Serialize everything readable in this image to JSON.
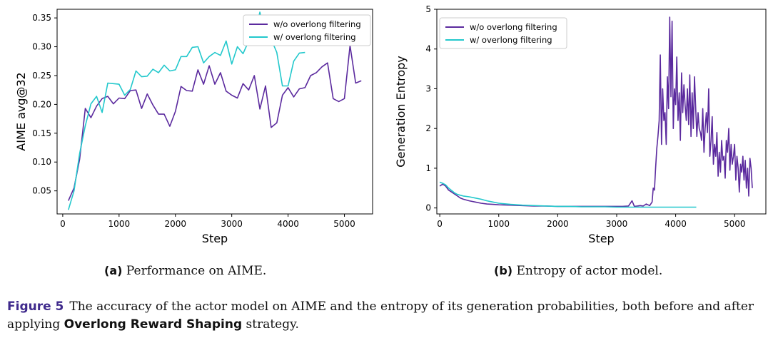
{
  "colors": {
    "without": "#5b2a9e",
    "with": "#22c8cc"
  },
  "chart_data": [
    {
      "type": "line",
      "title": "",
      "xlabel": "Step",
      "ylabel": "AIME avg@32",
      "xlim": [
        -100,
        5500
      ],
      "ylim": [
        0.01,
        0.365
      ],
      "xticks": [
        0,
        1000,
        2000,
        3000,
        4000,
        5000
      ],
      "yticks": [
        0.05,
        0.1,
        0.15,
        0.2,
        0.25,
        0.3,
        0.35
      ],
      "ytick_labels": [
        "0.05",
        "0.10",
        "0.15",
        "0.20",
        "0.25",
        "0.30",
        "0.35"
      ],
      "legend_position": "top-right",
      "series": [
        {
          "name": "w/o overlong filtering",
          "color_key": "without",
          "x": [
            100,
            200,
            300,
            400,
            500,
            600,
            700,
            800,
            900,
            1000,
            1100,
            1200,
            1300,
            1400,
            1500,
            1600,
            1700,
            1800,
            1900,
            2000,
            2100,
            2200,
            2300,
            2400,
            2500,
            2600,
            2700,
            2800,
            2900,
            3000,
            3100,
            3200,
            3300,
            3400,
            3500,
            3600,
            3700,
            3800,
            3900,
            4000,
            4100,
            4200,
            4300,
            4400,
            4500,
            4600,
            4700,
            4800,
            4900,
            5000,
            5100,
            5200,
            5300
          ],
          "y": [
            0.033,
            0.055,
            0.105,
            0.193,
            0.177,
            0.197,
            0.21,
            0.214,
            0.201,
            0.211,
            0.21,
            0.224,
            0.225,
            0.193,
            0.218,
            0.199,
            0.183,
            0.183,
            0.162,
            0.188,
            0.231,
            0.224,
            0.223,
            0.26,
            0.235,
            0.267,
            0.235,
            0.255,
            0.223,
            0.216,
            0.211,
            0.236,
            0.225,
            0.25,
            0.192,
            0.232,
            0.16,
            0.168,
            0.216,
            0.229,
            0.213,
            0.227,
            0.229,
            0.25,
            0.255,
            0.265,
            0.272,
            0.21,
            0.205,
            0.21,
            0.302,
            0.237,
            0.241
          ]
        },
        {
          "name": "w/ overlong filtering",
          "color_key": "with",
          "x": [
            100,
            200,
            300,
            400,
            500,
            600,
            700,
            800,
            900,
            1000,
            1100,
            1200,
            1300,
            1400,
            1500,
            1600,
            1700,
            1800,
            1900,
            2000,
            2100,
            2200,
            2300,
            2400,
            2500,
            2600,
            2700,
            2800,
            2900,
            3000,
            3100,
            3200,
            3300,
            3400,
            3500,
            3600,
            3700,
            3800,
            3900,
            4000,
            4100,
            4200,
            4300
          ],
          "y": [
            0.017,
            0.05,
            0.115,
            0.163,
            0.201,
            0.214,
            0.186,
            0.237,
            0.236,
            0.235,
            0.216,
            0.226,
            0.258,
            0.248,
            0.249,
            0.261,
            0.255,
            0.268,
            0.258,
            0.26,
            0.283,
            0.283,
            0.299,
            0.3,
            0.272,
            0.283,
            0.29,
            0.285,
            0.31,
            0.27,
            0.3,
            0.288,
            0.31,
            0.32,
            0.36,
            0.315,
            0.313,
            0.29,
            0.232,
            0.232,
            0.275,
            0.289,
            0.29
          ]
        }
      ]
    },
    {
      "type": "line",
      "title": "",
      "xlabel": "Step",
      "ylabel": "Generation Entropy",
      "xlim": [
        -50,
        5530
      ],
      "ylim": [
        -0.15,
        5.0
      ],
      "xticks": [
        0,
        1000,
        2000,
        3000,
        4000,
        5000
      ],
      "yticks": [
        0,
        1,
        2,
        3,
        4,
        5
      ],
      "ytick_labels": [
        "0",
        "1",
        "2",
        "3",
        "4",
        "5"
      ],
      "legend_position": "top-left",
      "series": [
        {
          "name": "w/o overlong filtering",
          "color_key": "without",
          "x": [
            0,
            50,
            100,
            150,
            200,
            250,
            300,
            350,
            400,
            450,
            500,
            600,
            700,
            800,
            900,
            1000,
            1200,
            1400,
            1600,
            1800,
            2000,
            2200,
            2400,
            2600,
            2800,
            3000,
            3100,
            3200,
            3260,
            3300,
            3350,
            3400,
            3450,
            3500,
            3530,
            3560,
            3600,
            3620,
            3640,
            3660,
            3680,
            3700,
            3720,
            3740,
            3760,
            3780,
            3800,
            3820,
            3840,
            3860,
            3880,
            3900,
            3920,
            3940,
            3960,
            3980,
            4000,
            4020,
            4040,
            4060,
            4080,
            4100,
            4120,
            4140,
            4160,
            4180,
            4200,
            4220,
            4240,
            4260,
            4280,
            4300,
            4320,
            4340,
            4360,
            4380,
            4400,
            4420,
            4440,
            4460,
            4480,
            4500,
            4520,
            4540,
            4560,
            4580,
            4600,
            4620,
            4640,
            4660,
            4680,
            4700,
            4720,
            4740,
            4760,
            4780,
            4800,
            4820,
            4840,
            4860,
            4880,
            4900,
            4920,
            4940,
            4960,
            4980,
            5000,
            5020,
            5040,
            5060,
            5080,
            5100,
            5120,
            5140,
            5160,
            5180,
            5200,
            5220,
            5240,
            5260,
            5280,
            5300
          ],
          "y": [
            0.55,
            0.6,
            0.55,
            0.45,
            0.4,
            0.35,
            0.3,
            0.25,
            0.22,
            0.2,
            0.18,
            0.15,
            0.12,
            0.1,
            0.09,
            0.08,
            0.07,
            0.06,
            0.05,
            0.05,
            0.04,
            0.04,
            0.04,
            0.04,
            0.04,
            0.04,
            0.04,
            0.05,
            0.18,
            0.04,
            0.05,
            0.06,
            0.05,
            0.1,
            0.08,
            0.06,
            0.15,
            0.5,
            0.45,
            1.0,
            1.5,
            1.8,
            2.2,
            3.85,
            1.6,
            3.0,
            2.2,
            2.4,
            1.6,
            3.3,
            2.5,
            4.8,
            2.8,
            4.7,
            2.0,
            3.0,
            2.6,
            3.8,
            2.2,
            2.9,
            1.7,
            3.4,
            2.4,
            3.1,
            2.6,
            2.2,
            3.0,
            2.1,
            3.35,
            1.8,
            2.9,
            2.0,
            3.3,
            2.5,
            1.8,
            2.4,
            2.0,
            1.9,
            1.7,
            2.5,
            1.4,
            2.0,
            2.4,
            1.9,
            3.0,
            1.3,
            1.7,
            2.3,
            1.1,
            1.6,
            1.3,
            1.9,
            0.8,
            1.4,
            0.9,
            1.7,
            1.2,
            1.3,
            0.75,
            1.7,
            1.4,
            2.0,
            0.95,
            1.6,
            1.1,
            1.3,
            1.6,
            0.7,
            1.3,
            1.0,
            0.4,
            1.1,
            0.9,
            1.3,
            0.7,
            1.2,
            0.5,
            1.0,
            0.3,
            1.25,
            1.0,
            0.5
          ]
        },
        {
          "name": "w/ overlong filtering",
          "color_key": "with",
          "x": [
            0,
            50,
            100,
            150,
            200,
            250,
            300,
            350,
            400,
            500,
            600,
            700,
            800,
            900,
            1000,
            1200,
            1400,
            1600,
            1800,
            2000,
            2200,
            2400,
            2600,
            2800,
            3000,
            3200,
            3400,
            3600,
            3800,
            4000,
            4200,
            4350
          ],
          "y": [
            0.65,
            0.62,
            0.58,
            0.5,
            0.44,
            0.38,
            0.34,
            0.32,
            0.3,
            0.28,
            0.25,
            0.22,
            0.18,
            0.15,
            0.12,
            0.09,
            0.07,
            0.06,
            0.05,
            0.04,
            0.04,
            0.03,
            0.03,
            0.03,
            0.02,
            0.02,
            0.02,
            0.02,
            0.02,
            0.02,
            0.02,
            0.02
          ]
        }
      ]
    }
  ],
  "captions": {
    "sub_a_tag": "(a)",
    "sub_a_text": "Performance on AIME.",
    "sub_b_tag": "(b)",
    "sub_b_text": "Entropy of actor model.",
    "figure_tag": "Figure 5",
    "figure_text_1": "The accuracy of the actor model on AIME and the entropy of its generation probabilities, both before and after applying",
    "figure_strategy": "Overlong Reward Shaping",
    "figure_text_2": "strategy."
  }
}
